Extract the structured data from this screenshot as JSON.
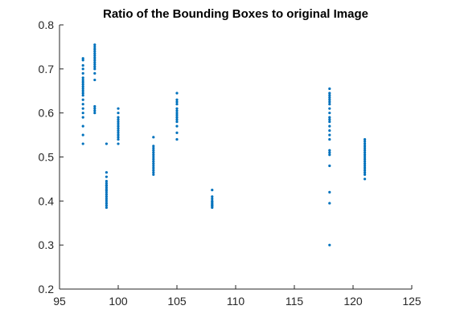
{
  "chart_data": {
    "type": "scatter",
    "title": "Ratio of the Bounding Boxes to original Image",
    "xlabel": "",
    "ylabel": "",
    "xlim": [
      95,
      125
    ],
    "ylim": [
      0.2,
      0.8
    ],
    "xticks": [
      "95",
      "100",
      "105",
      "110",
      "115",
      "120",
      "125"
    ],
    "yticks": [
      "0.2",
      "0.3",
      "0.4",
      "0.5",
      "0.6",
      "0.7",
      "0.8"
    ],
    "grid": false,
    "marker_color": "#0072bd",
    "series": [
      {
        "x": [
          97,
          97,
          97,
          97,
          97,
          97,
          97,
          97,
          97,
          97,
          97,
          97,
          97,
          97,
          97,
          97,
          97,
          97,
          97,
          97,
          97,
          97,
          98,
          98,
          98,
          98,
          98,
          98,
          98,
          98,
          98,
          98,
          98,
          98,
          98,
          98,
          98,
          98,
          98,
          98,
          99,
          99,
          99,
          99,
          99,
          99,
          99,
          99,
          99,
          99,
          99,
          99,
          99,
          99,
          99,
          99,
          99,
          99,
          100,
          100,
          100,
          100,
          100,
          100,
          100,
          100,
          100,
          100,
          100,
          100,
          100,
          100,
          103,
          103,
          103,
          103,
          103,
          103,
          103,
          103,
          103,
          103,
          103,
          103,
          103,
          103,
          103,
          105,
          105,
          105,
          105,
          105,
          105,
          105,
          105,
          105,
          105,
          105,
          105,
          105,
          105,
          108,
          108,
          108,
          108,
          108,
          108,
          108,
          108,
          108,
          108,
          118,
          118,
          118,
          118,
          118,
          118,
          118,
          118,
          118,
          118,
          118,
          118,
          118,
          118,
          118,
          118,
          118,
          118,
          118,
          118,
          118,
          118,
          118,
          121,
          121,
          121,
          121,
          121,
          121,
          121,
          121,
          121,
          121,
          121,
          121,
          121,
          121,
          121,
          121,
          121,
          121
        ],
        "y": [
          0.724,
          0.72,
          0.708,
          0.7,
          0.69,
          0.68,
          0.675,
          0.67,
          0.665,
          0.66,
          0.655,
          0.65,
          0.645,
          0.64,
          0.63,
          0.62,
          0.61,
          0.6,
          0.59,
          0.57,
          0.55,
          0.53,
          0.755,
          0.75,
          0.745,
          0.74,
          0.735,
          0.73,
          0.725,
          0.72,
          0.715,
          0.71,
          0.705,
          0.7,
          0.69,
          0.675,
          0.615,
          0.61,
          0.605,
          0.6,
          0.53,
          0.465,
          0.455,
          0.445,
          0.44,
          0.435,
          0.43,
          0.425,
          0.42,
          0.415,
          0.41,
          0.405,
          0.4,
          0.395,
          0.39,
          0.385,
          0.425,
          0.435,
          0.61,
          0.6,
          0.59,
          0.585,
          0.58,
          0.575,
          0.57,
          0.565,
          0.56,
          0.555,
          0.55,
          0.545,
          0.54,
          0.53,
          0.545,
          0.525,
          0.52,
          0.515,
          0.51,
          0.505,
          0.5,
          0.495,
          0.49,
          0.485,
          0.48,
          0.475,
          0.47,
          0.465,
          0.46,
          0.645,
          0.63,
          0.625,
          0.62,
          0.61,
          0.605,
          0.6,
          0.595,
          0.59,
          0.585,
          0.58,
          0.57,
          0.555,
          0.54,
          0.425,
          0.41,
          0.405,
          0.4,
          0.398,
          0.395,
          0.392,
          0.39,
          0.388,
          0.385,
          0.655,
          0.645,
          0.64,
          0.635,
          0.63,
          0.625,
          0.62,
          0.61,
          0.6,
          0.59,
          0.585,
          0.58,
          0.57,
          0.56,
          0.55,
          0.54,
          0.515,
          0.51,
          0.505,
          0.48,
          0.42,
          0.395,
          0.3,
          0.54,
          0.535,
          0.53,
          0.525,
          0.52,
          0.515,
          0.51,
          0.505,
          0.5,
          0.495,
          0.49,
          0.485,
          0.48,
          0.475,
          0.47,
          0.465,
          0.46,
          0.45
        ]
      }
    ]
  }
}
